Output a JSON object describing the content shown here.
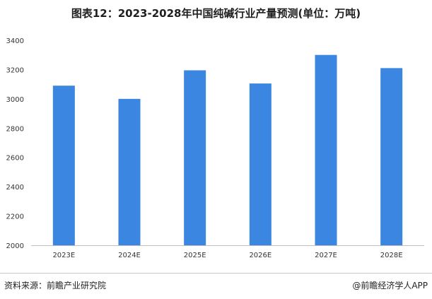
{
  "title": "图表12：2023-2028年中国纯碱行业产量预测(单位：万吨)",
  "footer": {
    "source": "资料来源：前瞻产业研究院",
    "brand": "@前瞻经济学人APP"
  },
  "watermark": "前瞻产业研究院",
  "colors": {
    "bar": "#3a86e0",
    "axis": "#bfbfbf",
    "text": "#333333"
  },
  "chart_data": {
    "type": "bar",
    "categories": [
      "2023E",
      "2024E",
      "2025E",
      "2026E",
      "2027E",
      "2028E"
    ],
    "values": [
      3090,
      3000,
      3195,
      3105,
      3300,
      3210
    ],
    "yticks": [
      2000,
      2200,
      2400,
      2600,
      2800,
      3000,
      3200,
      3400
    ],
    "ylim": [
      2000,
      3400
    ],
    "grid": false,
    "legend": "none"
  }
}
